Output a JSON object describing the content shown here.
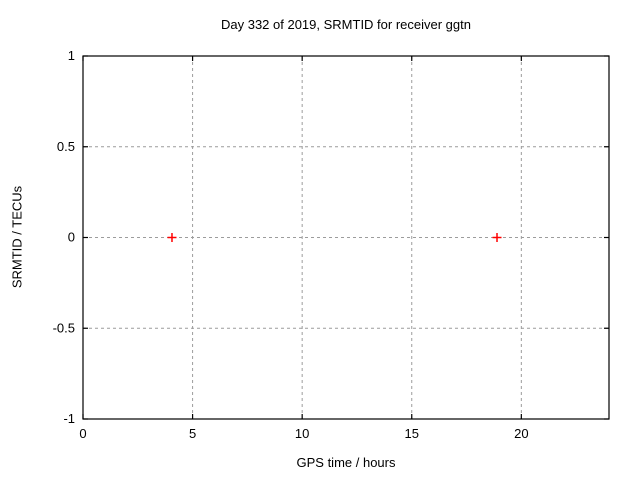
{
  "chart_data": {
    "type": "scatter",
    "title": "Day 332 of 2019, SRMTID for receiver ggtn",
    "xlabel": "GPS time / hours",
    "ylabel": "SRMTID / TECUs",
    "xlim": [
      0,
      24
    ],
    "ylim": [
      -1,
      1
    ],
    "xticks": {
      "values": [
        0,
        5,
        10,
        15,
        20
      ],
      "labels": [
        "0",
        "5",
        "10",
        "15",
        "20"
      ]
    },
    "yticks": {
      "values": [
        -1,
        -0.5,
        0,
        0.5,
        1
      ],
      "labels": [
        "-1",
        "-0.5",
        "0",
        "0.5",
        "1"
      ]
    },
    "grid": true,
    "grid_style": "dashed",
    "grid_color": "#9c9c9c",
    "axis_color": "#000000",
    "background_color": "#ffffff",
    "legend_position": "none",
    "series": [
      {
        "name": "SRMTID",
        "marker": "plus",
        "marker_color": "#ff0000",
        "marker_size": 9,
        "points": [
          {
            "x": 4.06,
            "y": 0
          },
          {
            "x": 18.89,
            "y": 0
          }
        ]
      }
    ]
  }
}
